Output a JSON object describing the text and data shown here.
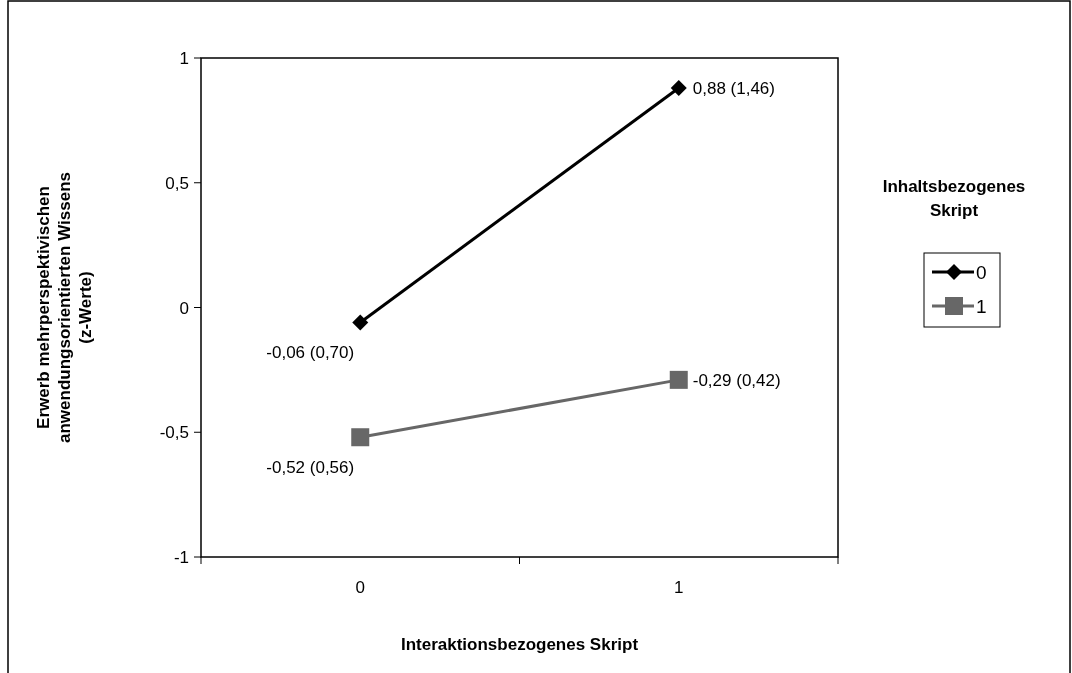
{
  "chart_data": {
    "type": "line",
    "xlabel": "Interaktionsbezogenes Skript",
    "ylabel": "Erwerb mehrperspektivischen\nanwendungsorientierten Wissens\n(z-Werte)",
    "legend_title": "Inhaltsbezogenes\nSkript",
    "categories": [
      "0",
      "1"
    ],
    "series": [
      {
        "name": "0",
        "color": "#000000",
        "marker": "diamond",
        "values": [
          -0.06,
          0.88
        ],
        "value_labels": [
          "-0,06 (0,70)",
          "0,88 (1,46)"
        ]
      },
      {
        "name": "1",
        "color": "#676767",
        "marker": "square",
        "values": [
          -0.52,
          -0.29
        ],
        "value_labels": [
          "-0,52 (0,56)",
          "-0,29 (0,42)"
        ]
      }
    ],
    "ylim": [
      -1,
      1
    ],
    "yticks": [
      -1,
      {
        "value": -0.5,
        "label": "-0,5"
      },
      0,
      {
        "value": 0.5,
        "label": "0,5"
      },
      1
    ],
    "grid": false,
    "legend": "right"
  }
}
